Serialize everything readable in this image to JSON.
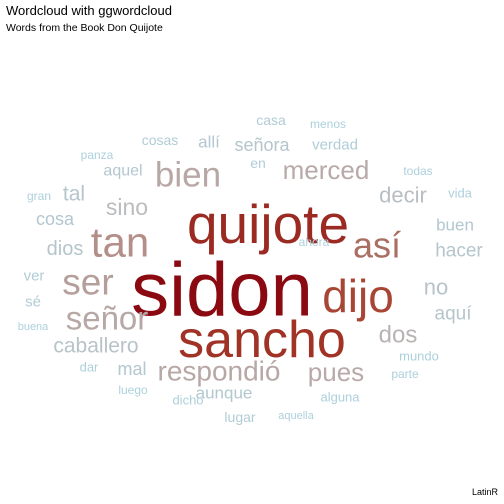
{
  "title": "Wordcloud with ggwordcloud",
  "subtitle": "Words from the Book Don Quijote",
  "caption": "LatinR",
  "chart_data": {
    "type": "wordcloud",
    "title": "Wordcloud with ggwordcloud",
    "subtitle": "Words from the Book Don Quijote",
    "words": [
      {
        "word": "sidon",
        "freq": 100,
        "color": "#8b0a12"
      },
      {
        "word": "quijote",
        "freq": 62,
        "color": "#9a2a22"
      },
      {
        "word": "sancho",
        "freq": 58,
        "color": "#a03226"
      },
      {
        "word": "dijo",
        "freq": 50,
        "color": "#a84535"
      },
      {
        "word": "tan",
        "freq": 38,
        "color": "#b48e88"
      },
      {
        "word": "así",
        "freq": 34,
        "color": "#aa6e62"
      },
      {
        "word": "ser",
        "freq": 33,
        "color": "#b59f9b"
      },
      {
        "word": "bien",
        "freq": 31,
        "color": "#b7a8a5"
      },
      {
        "word": "señor",
        "freq": 29,
        "color": "#b7a8a5"
      },
      {
        "word": "respondió",
        "freq": 27,
        "color": "#b7a8a5"
      },
      {
        "word": "merced",
        "freq": 25,
        "color": "#b7aaa8"
      },
      {
        "word": "pues",
        "freq": 25,
        "color": "#b8aaa8"
      },
      {
        "word": "dos",
        "freq": 22,
        "color": "#b9b3b3"
      },
      {
        "word": "sino",
        "freq": 21,
        "color": "#babcbe"
      },
      {
        "word": "decir",
        "freq": 20,
        "color": "#b8bec2"
      },
      {
        "word": "caballero",
        "freq": 19,
        "color": "#b8c3c8"
      },
      {
        "word": "no",
        "freq": 19,
        "color": "#b8c3c8"
      },
      {
        "word": "tal",
        "freq": 18,
        "color": "#b5c5cc"
      },
      {
        "word": "dios",
        "freq": 18,
        "color": "#b5c5cc"
      },
      {
        "word": "hacer",
        "freq": 18,
        "color": "#b5c5cc"
      },
      {
        "word": "señora",
        "freq": 17,
        "color": "#b5c5cc"
      },
      {
        "word": "aquí",
        "freq": 17,
        "color": "#b5c5cc"
      },
      {
        "word": "cosa",
        "freq": 16,
        "color": "#b3c7d0"
      },
      {
        "word": "mal",
        "freq": 16,
        "color": "#b3c7d0"
      },
      {
        "word": "allí",
        "freq": 16,
        "color": "#b3c7d0"
      },
      {
        "word": "buen",
        "freq": 16,
        "color": "#b3c7d0"
      },
      {
        "word": "aunque",
        "freq": 15,
        "color": "#b3c7d0"
      },
      {
        "word": "aquel",
        "freq": 15,
        "color": "#b3c7d0"
      },
      {
        "word": "verdad",
        "freq": 14,
        "color": "#b0ccd6"
      },
      {
        "word": "ver",
        "freq": 14,
        "color": "#b0ccd6"
      },
      {
        "word": "sé",
        "freq": 14,
        "color": "#b0ccd6"
      },
      {
        "word": "cosas",
        "freq": 13,
        "color": "#b0ccd6"
      },
      {
        "word": "casa",
        "freq": 13,
        "color": "#b0ccd6"
      },
      {
        "word": "en",
        "freq": 13,
        "color": "#b0ccd6"
      },
      {
        "word": "lugar",
        "freq": 13,
        "color": "#b0ccd6"
      },
      {
        "word": "vida",
        "freq": 12,
        "color": "#add0dc"
      },
      {
        "word": "mundo",
        "freq": 12,
        "color": "#add0dc"
      },
      {
        "word": "dar",
        "freq": 12,
        "color": "#add0dc"
      },
      {
        "word": "alguna",
        "freq": 12,
        "color": "#add0dc"
      },
      {
        "word": "dicho",
        "freq": 12,
        "color": "#add0dc"
      },
      {
        "word": "luego",
        "freq": 11,
        "color": "#add0dc"
      },
      {
        "word": "ahora",
        "freq": 11,
        "color": "#add0dc"
      },
      {
        "word": "todas",
        "freq": 11,
        "color": "#add0dc"
      },
      {
        "word": "gran",
        "freq": 11,
        "color": "#add0dc"
      },
      {
        "word": "menos",
        "freq": 11,
        "color": "#add0dc"
      },
      {
        "word": "panza",
        "freq": 11,
        "color": "#add0dc"
      },
      {
        "word": "parte",
        "freq": 11,
        "color": "#add0dc"
      },
      {
        "word": "buena",
        "freq": 10,
        "color": "#add0dc"
      },
      {
        "word": "aquella",
        "freq": 10,
        "color": "#add0dc"
      }
    ]
  }
}
